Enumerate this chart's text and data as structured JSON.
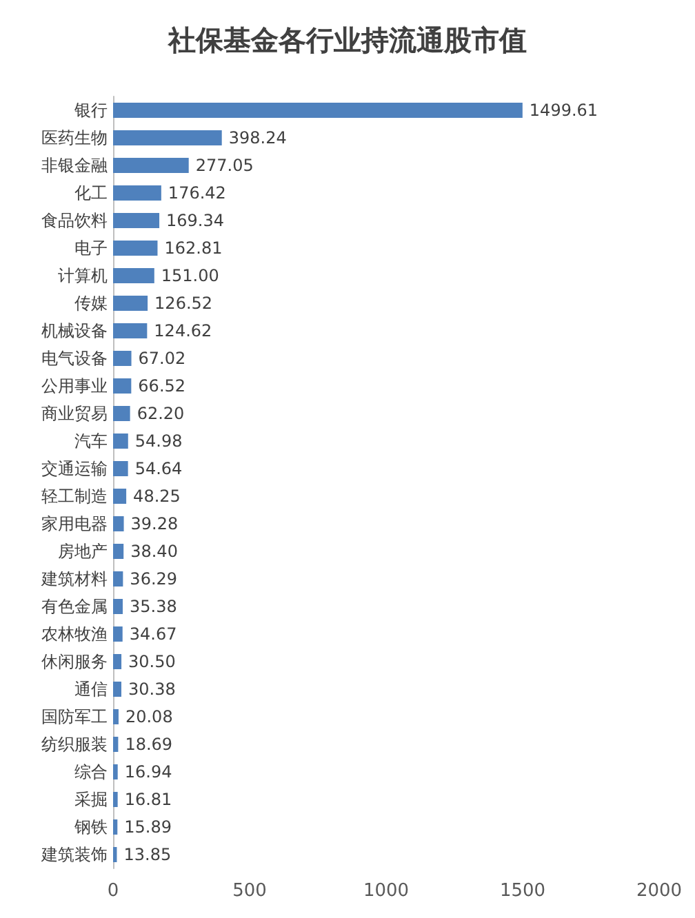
{
  "chart_data": {
    "type": "bar",
    "orientation": "horizontal",
    "title": "社保基金各行业持流通股市值",
    "categories": [
      "银行",
      "医药生物",
      "非银金融",
      "化工",
      "食品饮料",
      "电子",
      "计算机",
      "传媒",
      "机械设备",
      "电气设备",
      "公用事业",
      "商业贸易",
      "汽车",
      "交通运输",
      "轻工制造",
      "家用电器",
      "房地产",
      "建筑材料",
      "有色金属",
      "农林牧渔",
      "休闲服务",
      "通信",
      "国防军工",
      "纺织服装",
      "综合",
      "采掘",
      "钢铁",
      "建筑装饰"
    ],
    "values": [
      1499.61,
      398.24,
      277.05,
      176.42,
      169.34,
      162.81,
      151.0,
      126.52,
      124.62,
      67.02,
      66.52,
      62.2,
      54.98,
      54.64,
      48.25,
      39.28,
      38.4,
      36.29,
      35.38,
      34.67,
      30.5,
      30.38,
      20.08,
      18.69,
      16.94,
      16.81,
      15.89,
      13.85
    ],
    "value_labels": [
      "1499.61",
      "398.24",
      "277.05",
      "176.42",
      "169.34",
      "162.81",
      "151.00",
      "126.52",
      "124.62",
      "67.02",
      "66.52",
      "62.20",
      "54.98",
      "54.64",
      "48.25",
      "39.28",
      "38.40",
      "36.29",
      "35.38",
      "34.67",
      "30.50",
      "30.38",
      "20.08",
      "18.69",
      "16.94",
      "16.81",
      "15.89",
      "13.85"
    ],
    "color": "#4f81bd",
    "xlim": [
      0,
      2000
    ],
    "xticks": [
      0,
      500,
      1000,
      1500,
      2000
    ],
    "grid": false
  }
}
